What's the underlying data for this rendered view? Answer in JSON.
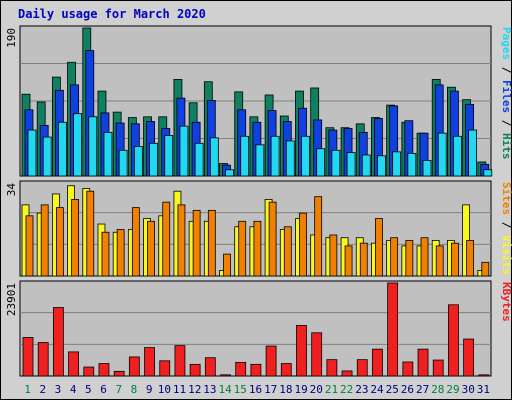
{
  "title": "Daily usage for March 2020",
  "colors": {
    "hits": "#0F8060",
    "files": "#1040E0",
    "pages": "#20D8F0",
    "visits": "#F8F820",
    "sites": "#F08000",
    "kbytes": "#F02020",
    "weekend_label": "#008040",
    "weekday_label": "#000080",
    "plot_bg": "#C0C0C0"
  },
  "chart_data": [
    {
      "type": "bar",
      "panel": "hits-files-pages",
      "y_axis_max_label": "190",
      "ylim": [
        0,
        190
      ],
      "right_axis_labels": [
        {
          "text": "Pages",
          "color": "#20D8F0"
        },
        {
          "text": "Files",
          "color": "#1040E0"
        },
        {
          "text": "Hits",
          "color": "#0F8060"
        }
      ],
      "separator": " / ",
      "categories": [
        "1",
        "2",
        "3",
        "4",
        "5",
        "6",
        "7",
        "8",
        "9",
        "10",
        "11",
        "12",
        "13",
        "14",
        "15",
        "16",
        "17",
        "18",
        "19",
        "20",
        "21",
        "22",
        "23",
        "24",
        "25",
        "26",
        "27",
        "28",
        "29",
        "30",
        "31"
      ],
      "series": [
        {
          "name": "Hits",
          "values": [
            105,
            95,
            127,
            146,
            190,
            109,
            82,
            75,
            76,
            76,
            124,
            94,
            121,
            16,
            108,
            76,
            104,
            77,
            109,
            113,
            62,
            62,
            67,
            75,
            91,
            69,
            55,
            124,
            114,
            98,
            18
          ]
        },
        {
          "name": "Files",
          "values": [
            85,
            65,
            110,
            117,
            161,
            81,
            68,
            67,
            70,
            61,
            100,
            69,
            97,
            14,
            85,
            69,
            84,
            70,
            87,
            72,
            59,
            61,
            56,
            74,
            90,
            71,
            55,
            117,
            109,
            92,
            15
          ]
        },
        {
          "name": "Pages",
          "values": [
            59,
            50,
            69,
            80,
            76,
            56,
            33,
            38,
            42,
            52,
            64,
            42,
            49,
            8,
            51,
            40,
            51,
            45,
            51,
            35,
            33,
            30,
            27,
            26,
            31,
            29,
            20,
            55,
            51,
            59,
            8
          ]
        }
      ]
    },
    {
      "type": "bar",
      "panel": "visits-sites",
      "y_axis_max_label": "34",
      "ylim": [
        0,
        34
      ],
      "right_axis_labels": [
        {
          "text": "Sites",
          "color": "#F08000"
        },
        {
          "text": "Visits",
          "color": "#F8F820"
        }
      ],
      "separator": " / ",
      "categories": [
        "1",
        "2",
        "3",
        "4",
        "5",
        "6",
        "7",
        "8",
        "9",
        "10",
        "11",
        "12",
        "13",
        "14",
        "15",
        "16",
        "17",
        "18",
        "19",
        "20",
        "21",
        "22",
        "23",
        "24",
        "25",
        "26",
        "27",
        "28",
        "29",
        "30",
        "31"
      ],
      "series": [
        {
          "name": "Visits",
          "values": [
            26,
            23,
            30,
            33,
            32,
            19,
            16,
            17,
            21,
            22,
            31,
            20,
            20,
            2,
            18,
            18,
            28,
            17,
            21,
            15,
            14,
            14,
            14,
            12,
            13,
            11,
            11,
            13,
            13,
            26,
            2
          ]
        },
        {
          "name": "Sites",
          "values": [
            22,
            26,
            25,
            28,
            31,
            16,
            17,
            25,
            20,
            27,
            26,
            24,
            24,
            8,
            20,
            20,
            27,
            18,
            23,
            29,
            15,
            11,
            12,
            21,
            14,
            13,
            14,
            11,
            12,
            13,
            5
          ]
        }
      ]
    },
    {
      "type": "bar",
      "panel": "kbytes",
      "y_axis_max_label": "23901",
      "ylim": [
        0,
        23901
      ],
      "right_axis_labels": [
        {
          "text": "KBytes",
          "color": "#F02020"
        }
      ],
      "separator": "",
      "categories": [
        "1",
        "2",
        "3",
        "4",
        "5",
        "6",
        "7",
        "8",
        "9",
        "10",
        "11",
        "12",
        "13",
        "14",
        "15",
        "16",
        "17",
        "18",
        "19",
        "20",
        "21",
        "22",
        "23",
        "24",
        "25",
        "26",
        "27",
        "28",
        "29",
        "30",
        "31"
      ],
      "series": [
        {
          "name": "KBytes",
          "values": [
            9900,
            8600,
            17600,
            6200,
            2300,
            3200,
            1200,
            4900,
            7300,
            3900,
            7800,
            3000,
            4700,
            300,
            3500,
            3000,
            7700,
            3200,
            13000,
            11100,
            4200,
            1300,
            4200,
            6900,
            23901,
            3600,
            6900,
            4100,
            18300,
            9500,
            300
          ]
        }
      ]
    }
  ],
  "day_labels": [
    "1",
    "2",
    "3",
    "4",
    "5",
    "6",
    "7",
    "8",
    "9",
    "10",
    "11",
    "12",
    "13",
    "14",
    "15",
    "16",
    "17",
    "18",
    "19",
    "20",
    "21",
    "22",
    "23",
    "24",
    "25",
    "26",
    "27",
    "28",
    "29",
    "30",
    "31"
  ],
  "weekend_days": [
    "1",
    "7",
    "8",
    "14",
    "15",
    "21",
    "22",
    "28",
    "29"
  ]
}
